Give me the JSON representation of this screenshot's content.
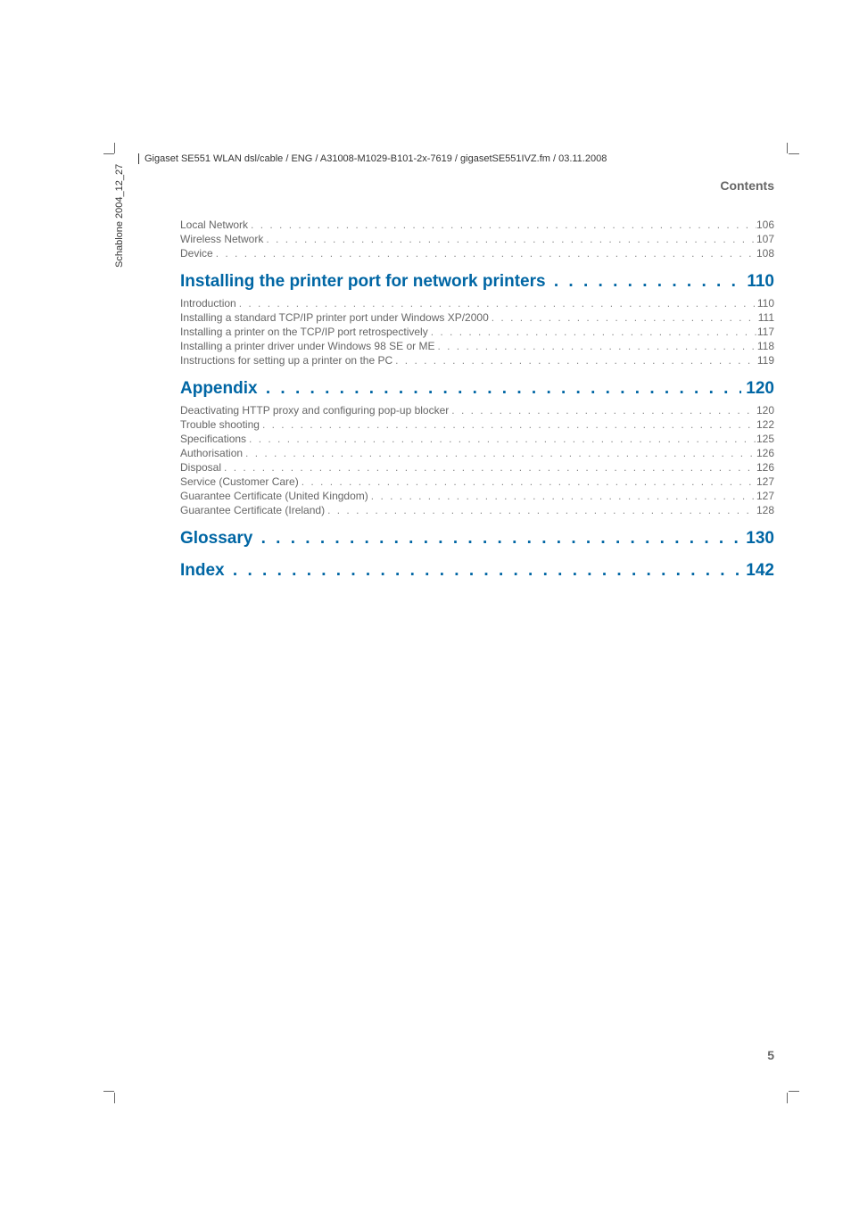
{
  "header_path": "Gigaset SE551 WLAN dsl/cable / ENG / A31008-M1029-B101-2x-7619 / gigasetSE551IVZ.fm / 03.11.2008",
  "side_text": "Schablone 2004_12_27",
  "section_title": "Contents",
  "page_number": "5",
  "colors": {
    "chapter_color": "#0066a4",
    "text_color": "#666",
    "body_color": "#666"
  },
  "toc": [
    {
      "type": "entry",
      "label": "Local Network",
      "page": "106"
    },
    {
      "type": "entry",
      "label": "Wireless Network",
      "page": "107"
    },
    {
      "type": "entry",
      "label": "Device",
      "page": "108"
    },
    {
      "type": "chapter",
      "label": "Installing the printer port for network printers",
      "page": "110"
    },
    {
      "type": "entry",
      "label": "Introduction",
      "page": "110"
    },
    {
      "type": "entry",
      "label": "Installing a standard TCP/IP printer port under Windows XP/2000",
      "page": "111"
    },
    {
      "type": "entry",
      "label": "Installing a printer on the TCP/IP port retrospectively",
      "page": "117"
    },
    {
      "type": "entry",
      "label": "Installing a printer driver under Windows 98 SE or ME",
      "page": "118"
    },
    {
      "type": "entry",
      "label": "Instructions for setting up a printer on the PC",
      "page": "119"
    },
    {
      "type": "chapter",
      "label": "Appendix",
      "page": "120"
    },
    {
      "type": "entry",
      "label": "Deactivating HTTP proxy and configuring pop-up blocker",
      "page": "120"
    },
    {
      "type": "entry",
      "label": "Trouble shooting",
      "page": "122"
    },
    {
      "type": "entry",
      "label": "Specifications",
      "page": "125"
    },
    {
      "type": "entry",
      "label": "Authorisation",
      "page": "126"
    },
    {
      "type": "entry",
      "label": "Disposal",
      "page": "126"
    },
    {
      "type": "entry",
      "label": "Service (Customer Care)",
      "page": "127"
    },
    {
      "type": "entry",
      "label": "Guarantee Certificate (United Kingdom)",
      "page": "127"
    },
    {
      "type": "entry",
      "label": "Guarantee Certificate (Ireland)",
      "page": "128"
    },
    {
      "type": "chapter",
      "label": "Glossary",
      "page": "130"
    },
    {
      "type": "chapter",
      "label": "Index",
      "page": "142"
    }
  ]
}
